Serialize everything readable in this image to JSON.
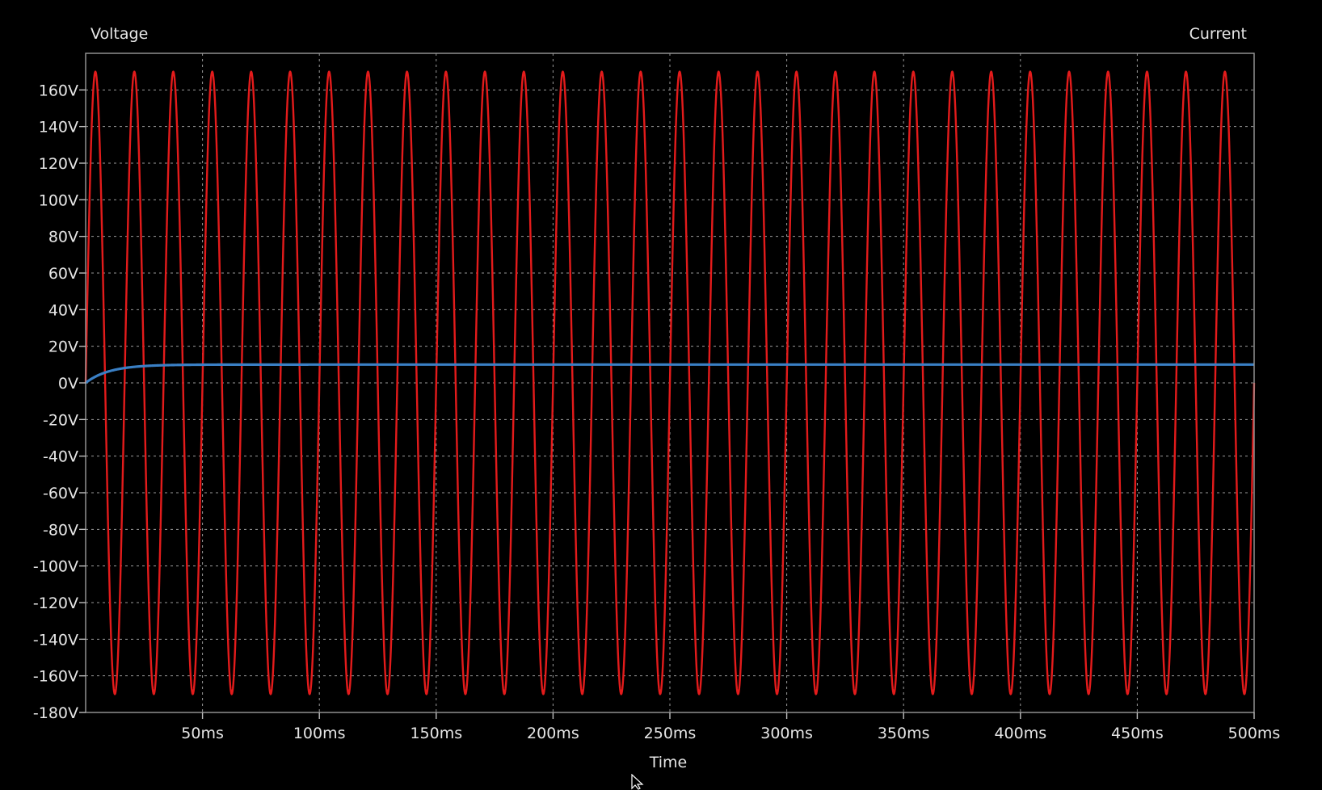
{
  "chart_data": {
    "type": "line",
    "left_axis_title": "Voltage",
    "right_axis_title": "Current",
    "xlabel": "Time",
    "xlim": [
      0,
      500
    ],
    "ylim": [
      -180,
      180
    ],
    "x_ticks": [
      {
        "value": 50,
        "label": "50ms"
      },
      {
        "value": 100,
        "label": "100ms"
      },
      {
        "value": 150,
        "label": "150ms"
      },
      {
        "value": 200,
        "label": "200ms"
      },
      {
        "value": 250,
        "label": "250ms"
      },
      {
        "value": 300,
        "label": "300ms"
      },
      {
        "value": 350,
        "label": "350ms"
      },
      {
        "value": 400,
        "label": "400ms"
      },
      {
        "value": 450,
        "label": "450ms"
      },
      {
        "value": 500,
        "label": "500ms"
      }
    ],
    "y_ticks": [
      {
        "value": 160,
        "label": "160V"
      },
      {
        "value": 140,
        "label": "140V"
      },
      {
        "value": 120,
        "label": "120V"
      },
      {
        "value": 100,
        "label": "100V"
      },
      {
        "value": 80,
        "label": "80V"
      },
      {
        "value": 60,
        "label": "60V"
      },
      {
        "value": 40,
        "label": "40V"
      },
      {
        "value": 20,
        "label": "20V"
      },
      {
        "value": 0,
        "label": "0V"
      },
      {
        "value": -20,
        "label": "-20V"
      },
      {
        "value": -40,
        "label": "-40V"
      },
      {
        "value": -60,
        "label": "-60V"
      },
      {
        "value": -80,
        "label": "-80V"
      },
      {
        "value": -100,
        "label": "-100V"
      },
      {
        "value": -120,
        "label": "-120V"
      },
      {
        "value": -140,
        "label": "-140V"
      },
      {
        "value": -160,
        "label": "-160V"
      },
      {
        "value": -180,
        "label": "-180V"
      }
    ],
    "grid": true,
    "series": [
      {
        "kind": "sine",
        "color": "#e31b1b",
        "amplitude": 170,
        "frequency_hz": 60,
        "offset": 0
      },
      {
        "kind": "exponential-rise",
        "color": "#3a7fc4",
        "start_value": 0,
        "final_value": 10,
        "time_constant_ms": 10
      }
    ]
  },
  "cursor_icon": "mouse-pointer-icon"
}
